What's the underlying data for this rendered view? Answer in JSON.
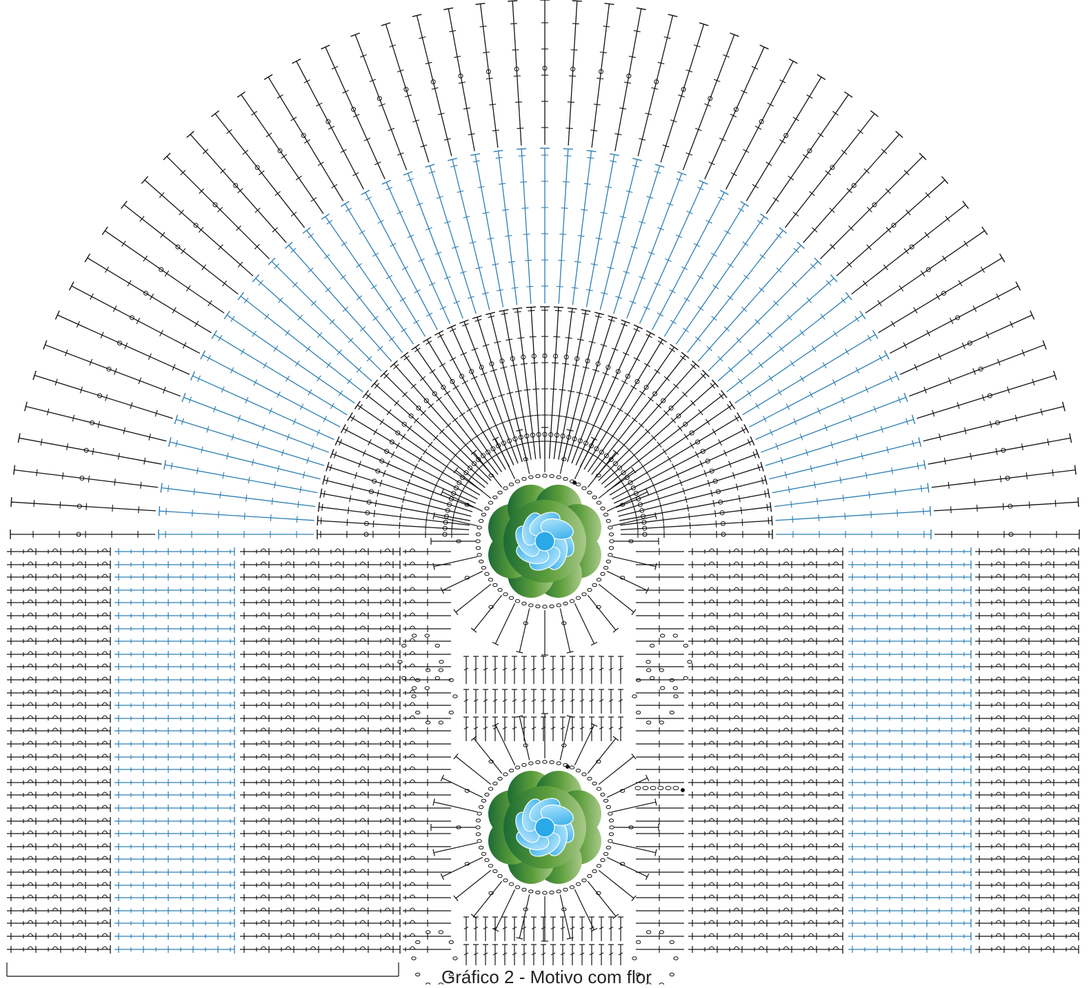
{
  "caption": "Gráfico 2 - Motivo com flor",
  "colors": {
    "stitch_dark": "#111111",
    "stitch_blue": "#2a7db3",
    "leaf_dark": "#1d6b33",
    "leaf_mid": "#5e9f3c",
    "leaf_light": "#a9c98a",
    "petal_light": "#bfeaff",
    "petal_blue": "#2aa9e8",
    "background": "#ffffff"
  },
  "flowers": [
    {
      "name": "upper-flower"
    },
    {
      "name": "lower-flower"
    }
  ],
  "icons": {
    "tall_stitch": "double-crochet-symbol",
    "chain": "chain-oval-symbol",
    "wavy_stitch": "puff-stitch-symbol"
  }
}
